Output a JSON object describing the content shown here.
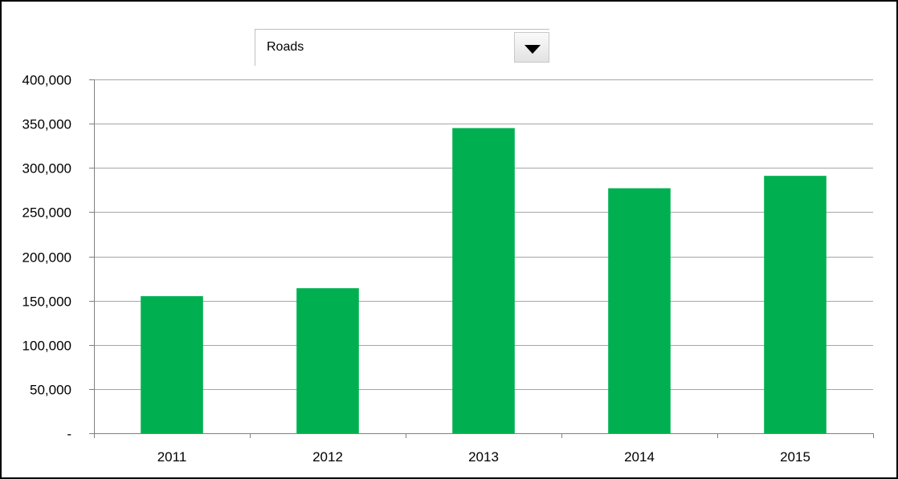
{
  "selector": {
    "selected_value": "Roads"
  },
  "colors": {
    "bar": "#00b050",
    "grid": "#a6a6a6",
    "axis": "#808080"
  },
  "chart_data": {
    "type": "bar",
    "title": "",
    "xlabel": "",
    "ylabel": "",
    "categories": [
      "2011",
      "2012",
      "2013",
      "2014",
      "2015"
    ],
    "values": [
      155000,
      164000,
      345000,
      277000,
      291000
    ],
    "ylim": [
      0,
      400000
    ],
    "y_ticks": [
      0,
      50000,
      100000,
      150000,
      200000,
      250000,
      300000,
      350000,
      400000
    ],
    "y_tick_labels": [
      "-",
      "50,000",
      "100,000",
      "150,000",
      "200,000",
      "250,000",
      "300,000",
      "350,000",
      "400,000"
    ],
    "grid": true,
    "legend": "none"
  }
}
